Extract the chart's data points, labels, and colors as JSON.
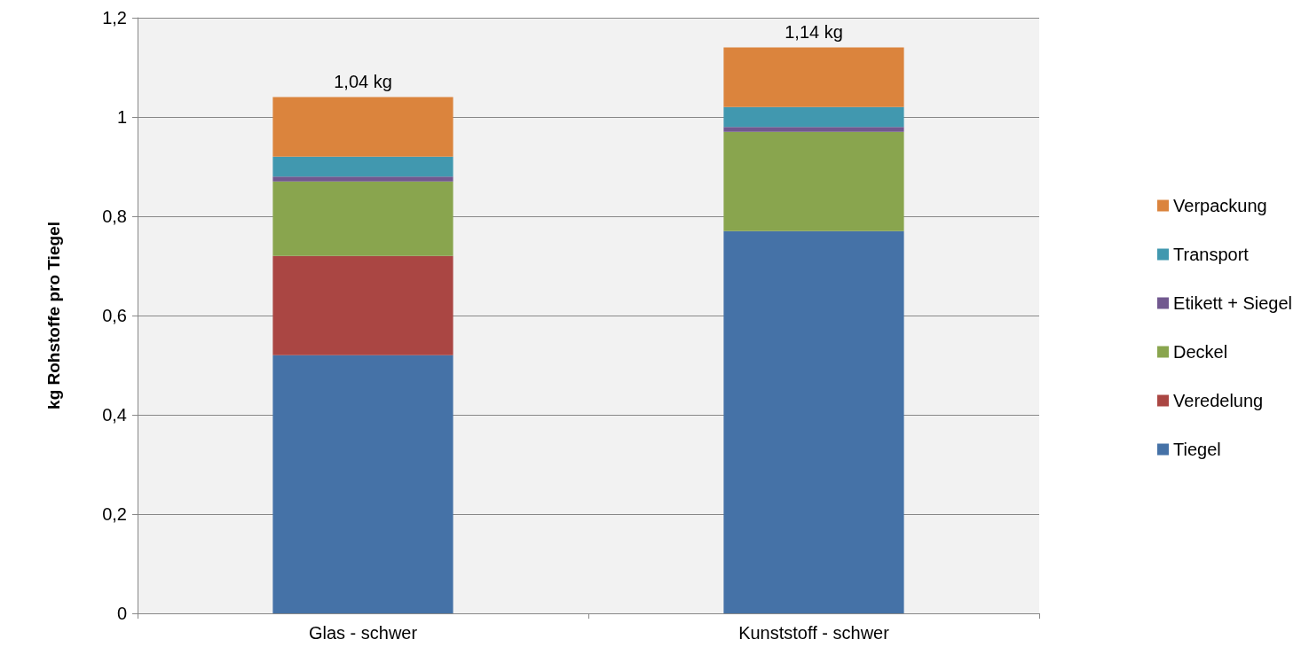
{
  "chart_data": {
    "type": "bar",
    "stacked": true,
    "ylabel": "kg Rohstoffe pro Tiegel",
    "categories": [
      "Glas - schwer",
      "Kunststoff - schwer"
    ],
    "series": [
      {
        "name": "Tiegel",
        "color": "#4572a7",
        "values": [
          0.52,
          0.77
        ]
      },
      {
        "name": "Veredelung",
        "color": "#aa4643",
        "values": [
          0.2,
          0
        ]
      },
      {
        "name": "Deckel",
        "color": "#89a54e",
        "values": [
          0.15,
          0.2
        ]
      },
      {
        "name": "Etikett + Siegel",
        "color": "#71588f",
        "values": [
          0.01,
          0.01
        ]
      },
      {
        "name": "Transport",
        "color": "#4198af",
        "values": [
          0.04,
          0.04
        ]
      },
      {
        "name": "Verpackung",
        "color": "#db843d",
        "values": [
          0.12,
          0.12
        ]
      }
    ],
    "ylim": [
      0,
      1.2
    ],
    "yticks": [
      0,
      {
        "value": 0.2,
        "label": "0,2"
      },
      {
        "value": 0.4,
        "label": "0,4"
      },
      {
        "value": 0.6,
        "label": "0,6"
      },
      {
        "value": 0.8,
        "label": "0,8"
      },
      1,
      {
        "value": 1.2,
        "label": "1,2"
      }
    ],
    "totals": [
      "1,04 kg",
      "1,14 kg"
    ],
    "grid": "y",
    "legend": "right"
  }
}
